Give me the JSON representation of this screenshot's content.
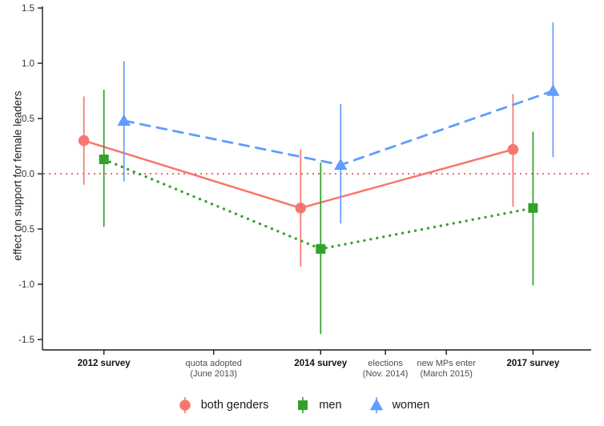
{
  "chart_data": {
    "type": "pointrange-line",
    "title": "",
    "ylabel": "effect on support for female leaders",
    "ylim": [
      -1.5,
      1.5
    ],
    "grid": "off",
    "legend_position": "bottom",
    "axis_color": "#1a1a1a",
    "yticks": [
      {
        "v": 1.5,
        "label": "1.5"
      },
      {
        "v": 1.0,
        "label": "1.0"
      },
      {
        "v": 0.5,
        "label": "0.5"
      },
      {
        "v": 0.0,
        "label": "0.0"
      },
      {
        "v": -0.5,
        "label": "-0.5"
      },
      {
        "v": -1.0,
        "label": "-1.0"
      },
      {
        "v": -1.5,
        "label": "-1.5"
      }
    ],
    "zero_line": {
      "y": 0,
      "color": "#ef3b2c",
      "style": "dotted"
    },
    "x_ticks": [
      {
        "label": "2012 survey",
        "label2": "",
        "pos": 0.112,
        "bold": true
      },
      {
        "label": "quota adopted",
        "label2": "(June 2013)",
        "pos": 0.312,
        "bold": false
      },
      {
        "label": "2014 survey",
        "label2": "",
        "pos": 0.507,
        "bold": true
      },
      {
        "label": "elections",
        "label2": "(Nov. 2014)",
        "pos": 0.625,
        "bold": false
      },
      {
        "label": "new MPs enter",
        "label2": "(March 2015)",
        "pos": 0.736,
        "bold": false
      },
      {
        "label": "2017 survey",
        "label2": "",
        "pos": 0.894,
        "bold": true
      }
    ],
    "series": [
      {
        "name": "both genders",
        "color": "#f8766d",
        "marker": "circle",
        "dash": "solid",
        "dodge": -25,
        "points": [
          {
            "tick": 0,
            "y": 0.3,
            "lo": -0.1,
            "hi": 0.7
          },
          {
            "tick": 2,
            "y": -0.31,
            "lo": -0.84,
            "hi": 0.22
          },
          {
            "tick": 5,
            "y": 0.22,
            "lo": -0.3,
            "hi": 0.72
          }
        ]
      },
      {
        "name": "men",
        "color": "#33a02c",
        "marker": "square",
        "dash": "dotted",
        "dodge": 0,
        "points": [
          {
            "tick": 0,
            "y": 0.13,
            "lo": -0.48,
            "hi": 0.76
          },
          {
            "tick": 2,
            "y": -0.68,
            "lo": -1.45,
            "hi": 0.1
          },
          {
            "tick": 5,
            "y": -0.31,
            "lo": -1.01,
            "hi": 0.38
          }
        ]
      },
      {
        "name": "women",
        "color": "#619cff",
        "marker": "triangle",
        "dash": "dashed",
        "dodge": 25,
        "points": [
          {
            "tick": 0,
            "y": 0.48,
            "lo": -0.07,
            "hi": 1.02
          },
          {
            "tick": 2,
            "y": 0.08,
            "lo": -0.45,
            "hi": 0.63
          },
          {
            "tick": 5,
            "y": 0.75,
            "lo": 0.15,
            "hi": 1.37
          }
        ]
      }
    ]
  }
}
